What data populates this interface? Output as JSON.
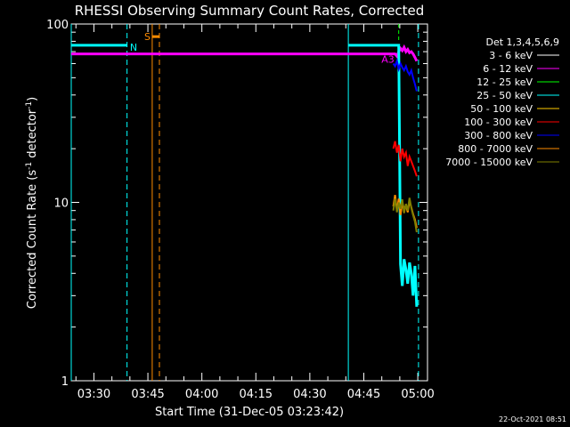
{
  "chart_data": {
    "type": "line",
    "title": "RHESSI Observing Summary Count Rates, Corrected",
    "xlabel": "Start Time (31-Dec-05 03:23:42)",
    "ylabel_main": "Corrected Count Rate (s",
    "ylabel_sup1": "-1",
    "ylabel_mid": " detector",
    "ylabel_sup2": "-1",
    "ylabel_end": ")",
    "y_scale": "log",
    "ylim": [
      1,
      100
    ],
    "y_tick_labels": [
      "1",
      "10",
      "100"
    ],
    "x_unit": "minutes since 03:23:42",
    "xlim": [
      0,
      99
    ],
    "x_tick_labels": [
      "03:30",
      "03:45",
      "04:00",
      "04:15",
      "04:30",
      "04:45",
      "05:00"
    ],
    "x_tick_minutes": [
      6.3,
      21.3,
      36.3,
      51.3,
      66.3,
      81.3,
      96.3
    ],
    "legend_placement": "right",
    "legend_title": "Det 1,3,4,5,6,9",
    "series": [
      {
        "name": "3 - 6 keV",
        "color": "#ffffff"
      },
      {
        "name": "6 - 12 keV",
        "color": "#ff00ff"
      },
      {
        "name": "12 - 25 keV",
        "color": "#00ff00"
      },
      {
        "name": "25 - 50 keV",
        "color": "#00ffff"
      },
      {
        "name": "50 - 100 keV",
        "color": "#ffcc00"
      },
      {
        "name": "100 - 300 keV",
        "color": "#ff0000"
      },
      {
        "name": "300 - 800 keV",
        "color": "#0000ff"
      },
      {
        "name": "800 - 7000 keV",
        "color": "#ff8c00"
      },
      {
        "name": "7000 - 15000 keV",
        "color": "#808000"
      }
    ],
    "curves": [
      {
        "series": "6 - 12 keV",
        "x": [
          0,
          90,
          90.5,
          91,
          91.5,
          92,
          92.5,
          93,
          93.5,
          94,
          94.5,
          95,
          95.5,
          96
        ],
        "y": [
          68,
          68,
          66,
          70,
          73,
          71,
          74,
          70,
          72,
          69,
          70,
          68,
          65,
          62
        ]
      },
      {
        "series": "25 - 50 keV",
        "x": [
          0,
          15.5
        ],
        "y": [
          76,
          76
        ]
      },
      {
        "series": "25 - 50 keV",
        "x": [
          77,
          91,
          91.5,
          92,
          92.5,
          93,
          93.5,
          94,
          94.5,
          95,
          95.5,
          96
        ],
        "y": [
          76,
          76,
          4.5,
          3.4,
          4.8,
          4.2,
          3.5,
          4.6,
          4.0,
          3.0,
          4.4,
          2.6
        ]
      },
      {
        "series": "100 - 300 keV",
        "x": [
          89.5,
          90,
          90.5,
          91,
          91.5,
          92,
          92.5,
          93,
          93.5,
          94,
          94.5,
          95,
          95.5,
          96
        ],
        "y": [
          20,
          22,
          19,
          21,
          17,
          20,
          18,
          19,
          16,
          18,
          17,
          16,
          15,
          14
        ]
      },
      {
        "series": "300 - 800 keV",
        "x": [
          89.5,
          90,
          90.5,
          91,
          91.5,
          92,
          92.5,
          93,
          93.5,
          94,
          94.5,
          95,
          95.5,
          96
        ],
        "y": [
          60,
          58,
          62,
          56,
          60,
          57,
          55,
          58,
          54,
          52,
          55,
          50,
          46,
          42
        ]
      },
      {
        "series": "800 - 7000 keV",
        "x": [
          89.5,
          90,
          90.5,
          91,
          91.5,
          92,
          92.5,
          93,
          93.5,
          94,
          94.5,
          95,
          95.5,
          96
        ],
        "y": [
          9.5,
          11,
          9,
          10.5,
          8.5,
          10,
          9.2,
          9.6,
          8.8,
          10.2,
          9.4,
          8.6,
          8.0,
          7.2
        ]
      },
      {
        "series": "7000 - 15000 keV",
        "x": [
          89.5,
          90,
          90.5,
          91,
          91.5,
          92,
          92.5,
          93,
          93.5,
          94,
          94.5,
          95,
          95.5,
          96
        ],
        "y": [
          9,
          10.5,
          8.8,
          10,
          9.2,
          10.4,
          8.7,
          9.8,
          9.0,
          10.6,
          9.3,
          8.5,
          7.8,
          6.8
        ]
      }
    ],
    "annotations": {
      "n_label": "N",
      "s_label": "S",
      "a3_label": "A3"
    },
    "markers": {
      "solid_cyan_x": [
        0,
        77
      ],
      "dashed_cyan_x": [
        15.5,
        96.5
      ],
      "solid_orange_x": [
        22.5
      ],
      "dashed_orange_x": [
        24.5
      ],
      "dashed_green_x": [
        91
      ]
    },
    "timestamp": "22-Oct-2021 08:51"
  }
}
